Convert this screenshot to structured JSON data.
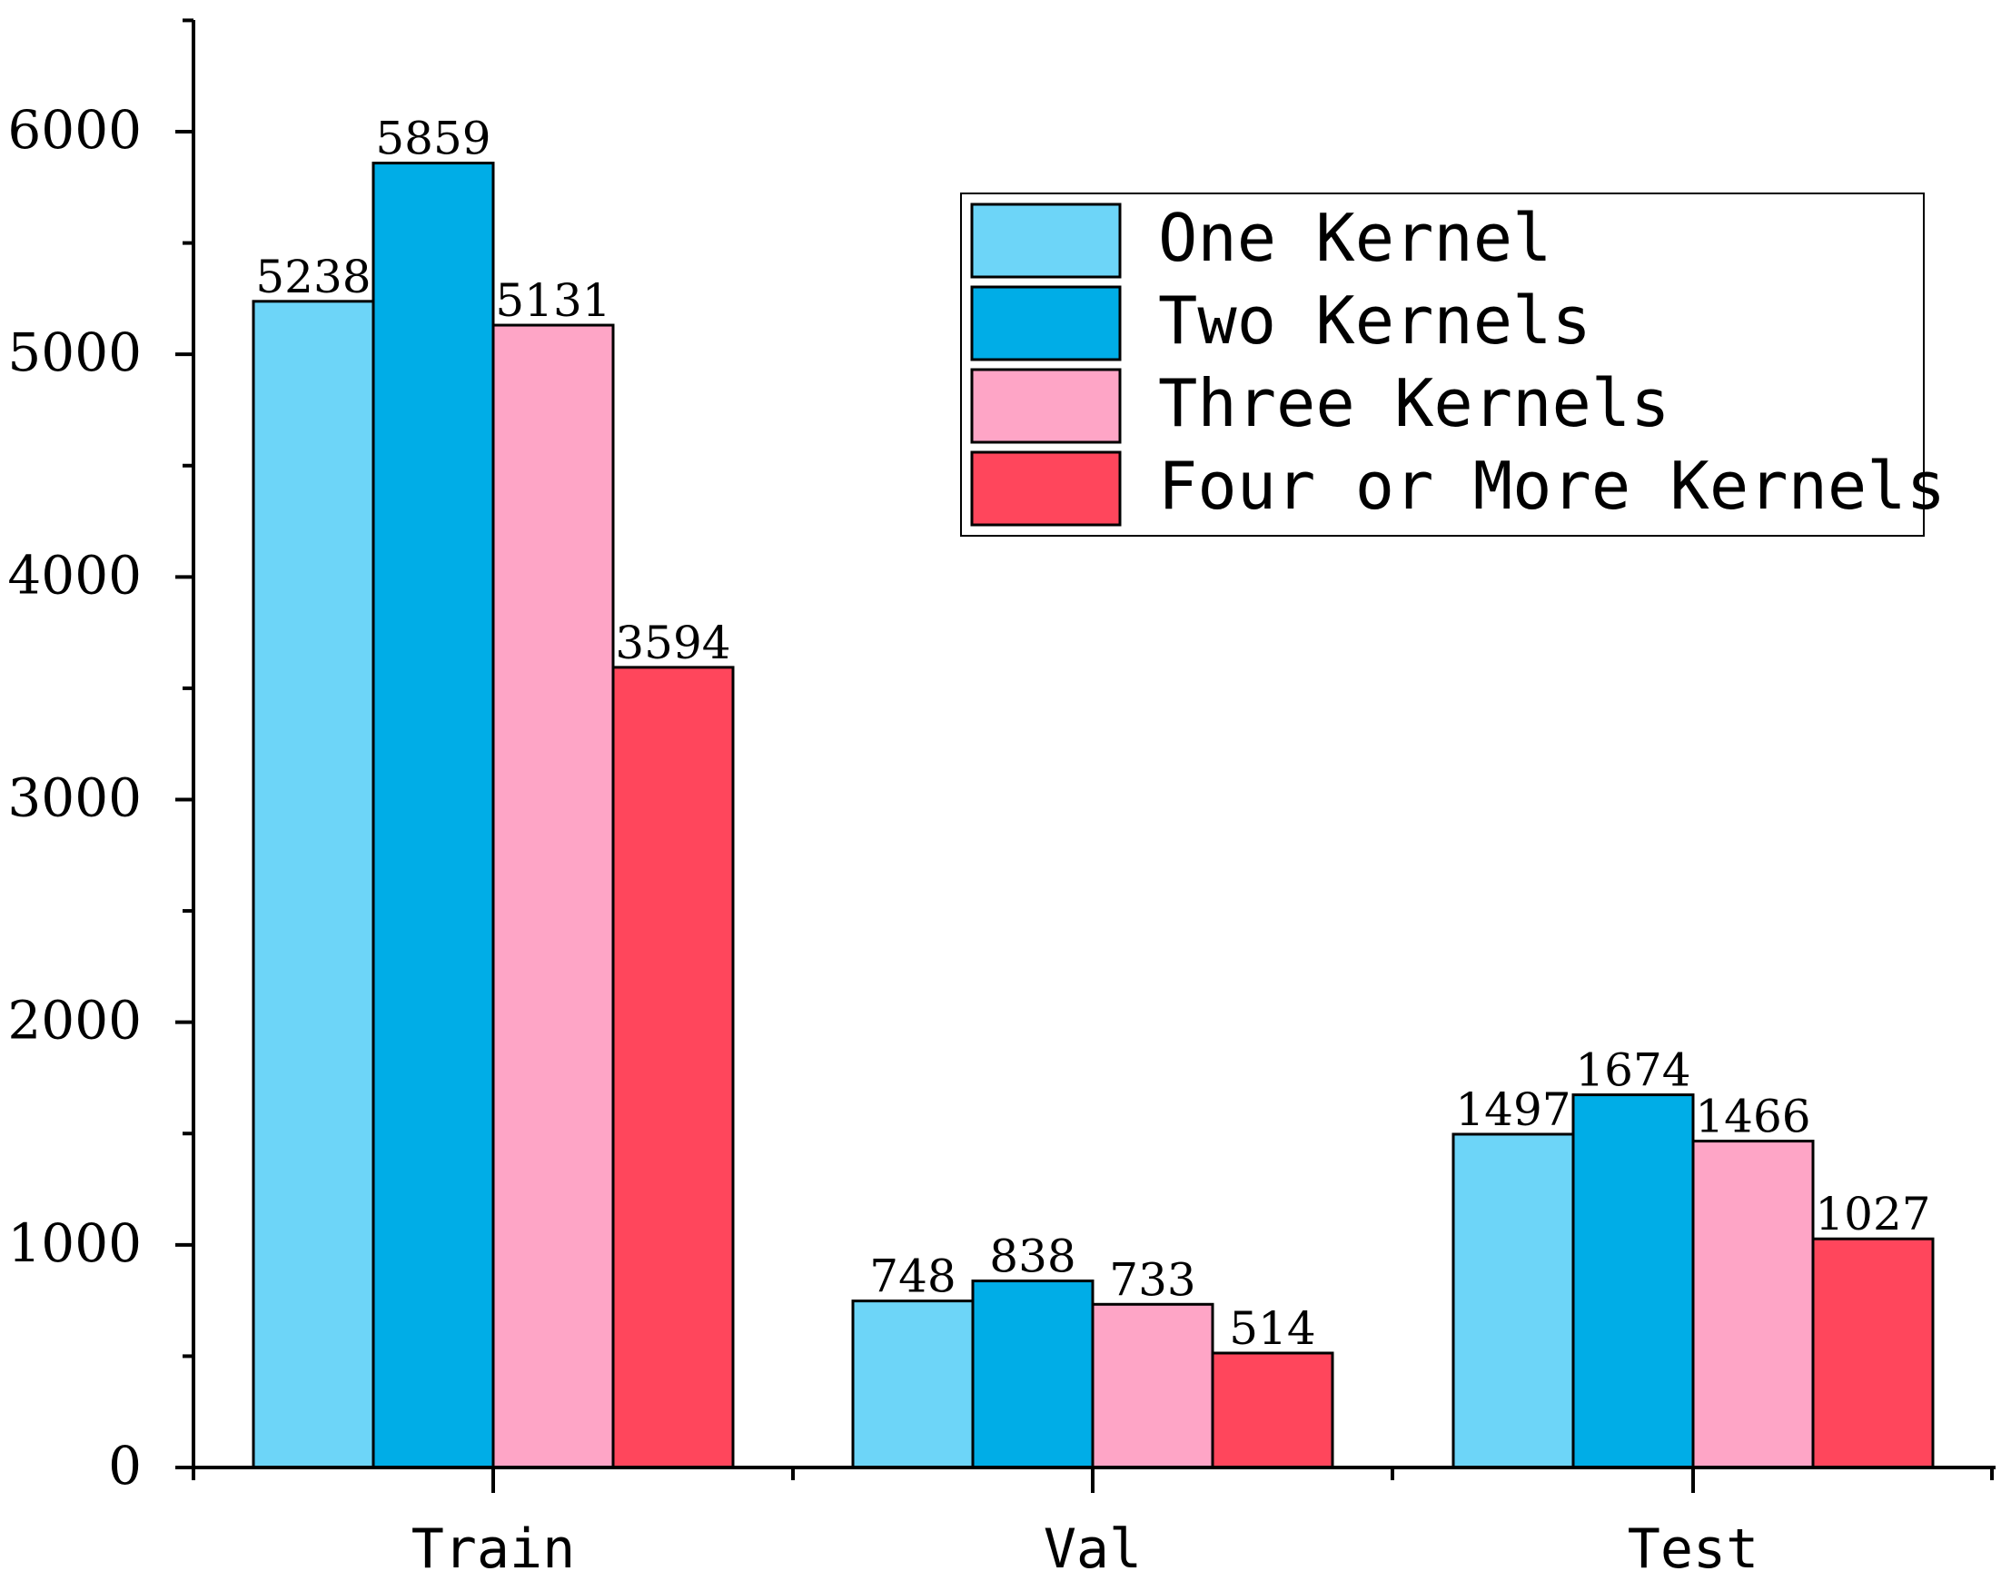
{
  "chart_data": {
    "type": "bar",
    "categories": [
      "Train",
      "Val",
      "Test"
    ],
    "series": [
      {
        "name": "One Kernel",
        "color": "#6DD5F8",
        "values": [
          5238,
          748,
          1497
        ]
      },
      {
        "name": "Two Kernels",
        "color": "#00ADE7",
        "values": [
          5859,
          838,
          1674
        ]
      },
      {
        "name": "Three Kernels",
        "color": "#FEA5C6",
        "values": [
          5131,
          733,
          1466
        ]
      },
      {
        "name": "Four or More Kernels",
        "color": "#FF465C",
        "values": [
          3594,
          514,
          1027
        ]
      }
    ],
    "yticks": [
      0,
      1000,
      2000,
      3000,
      4000,
      5000,
      6000
    ],
    "ylim": [
      0,
      6500
    ],
    "title": "",
    "xlabel": "",
    "ylabel": "",
    "legend_position": "top-right",
    "grid": false
  }
}
